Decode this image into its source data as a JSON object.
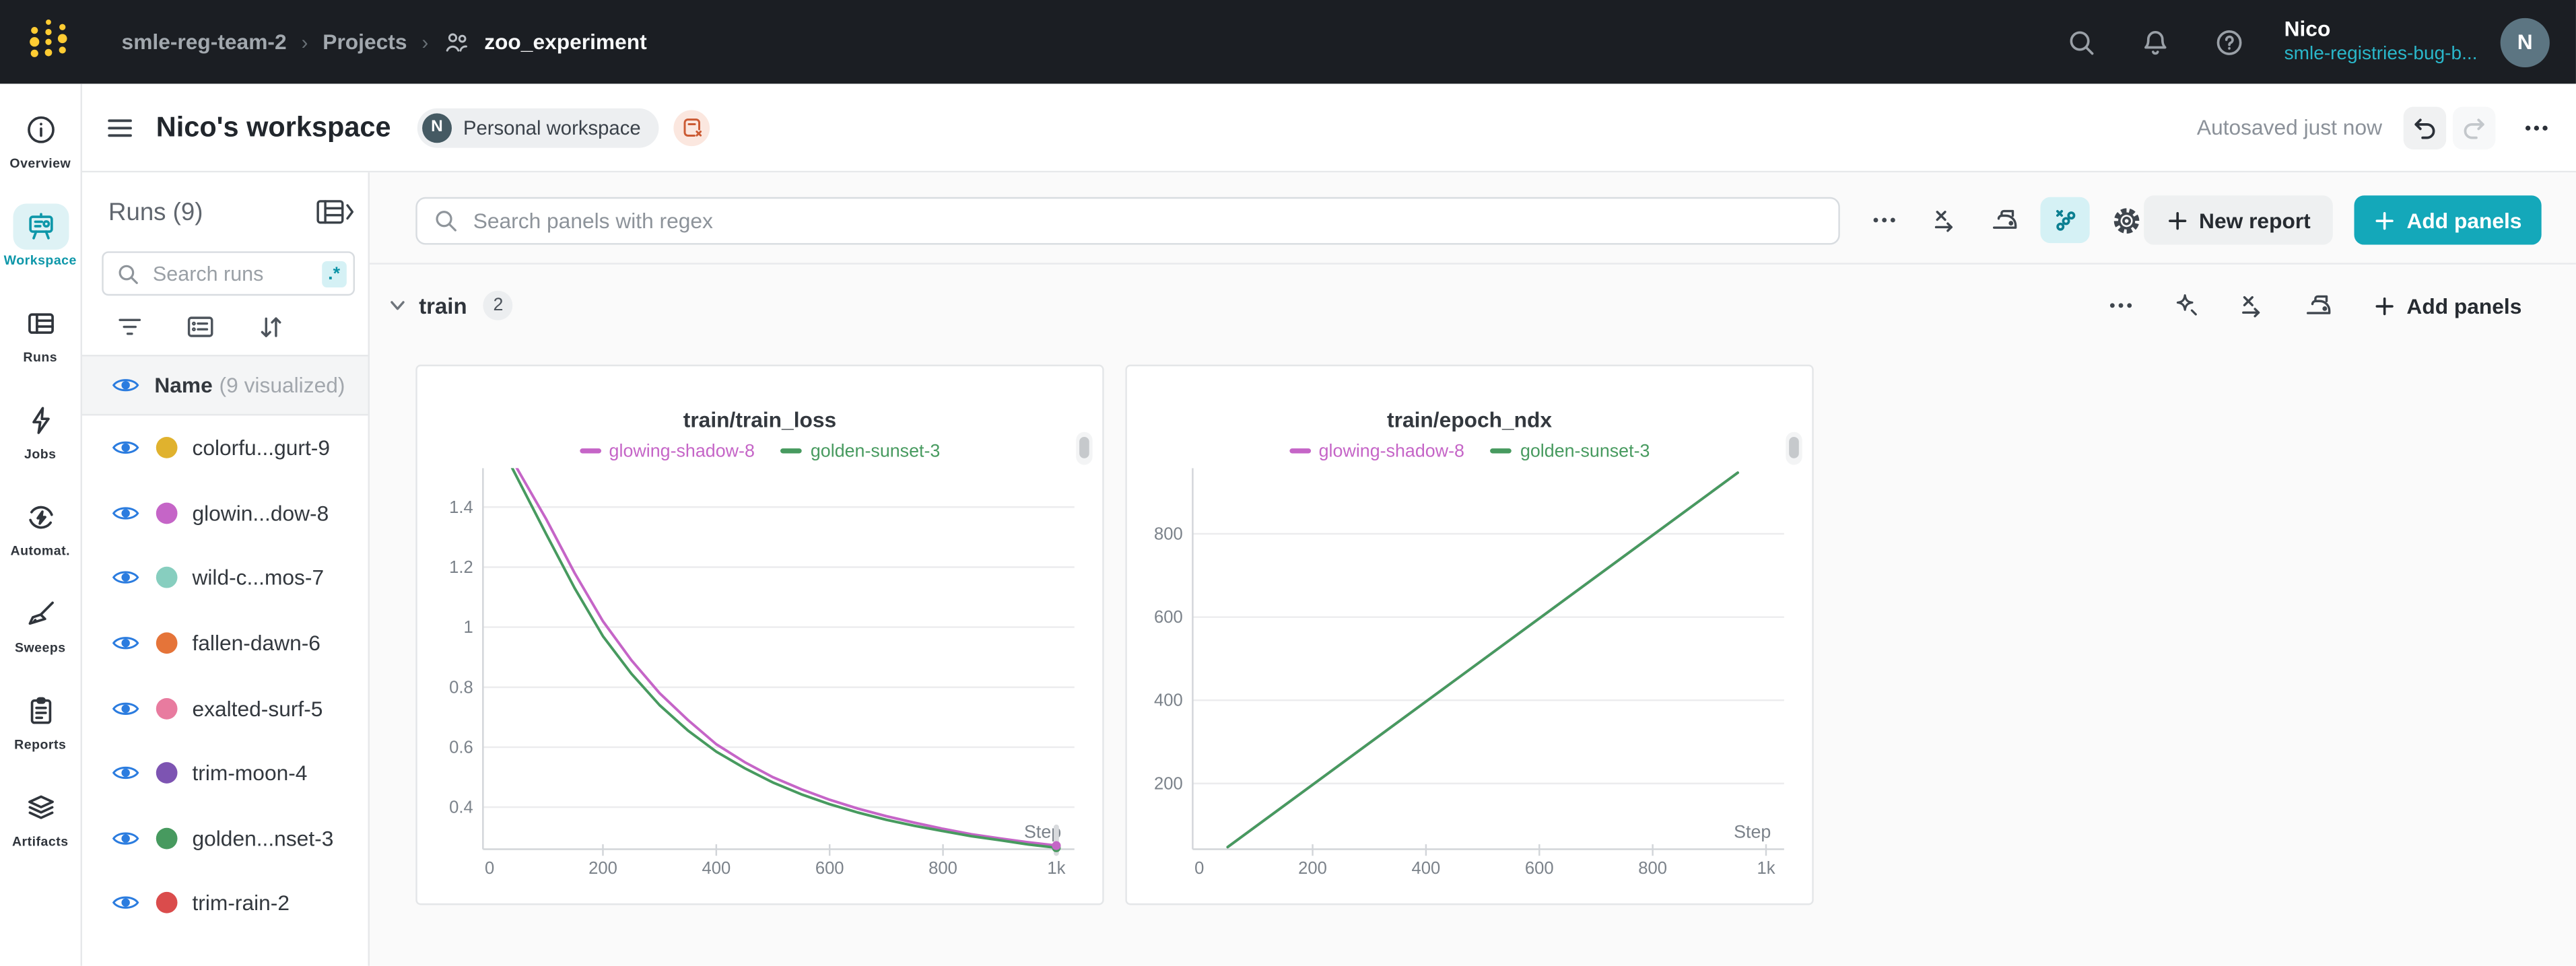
{
  "topbar": {
    "breadcrumb": {
      "team": "smle-reg-team-2",
      "section": "Projects",
      "project": "zoo_experiment",
      "separator": "›"
    },
    "icons": [
      "search-icon",
      "notifications-bell-icon",
      "help-icon"
    ],
    "user": {
      "name": "Nico",
      "org": "smle-registries-bug-b...",
      "avatar_initial": "N"
    }
  },
  "appbar": {
    "title": "Nico's workspace",
    "workspace_badge": {
      "initial": "N",
      "label": "Personal workspace"
    },
    "autosaved": "Autosaved just now"
  },
  "left_nav": {
    "items": [
      {
        "label": "Overview",
        "icon": "info-icon",
        "active": false
      },
      {
        "label": "Workspace",
        "icon": "workspace-easel-icon",
        "active": true
      },
      {
        "label": "Runs",
        "icon": "runs-table-icon",
        "active": false
      },
      {
        "label": "Jobs",
        "icon": "jobs-bolt-icon",
        "active": false
      },
      {
        "label": "Automat.",
        "icon": "automations-icon",
        "active": false
      },
      {
        "label": "Sweeps",
        "icon": "sweeps-broom-icon",
        "active": false
      },
      {
        "label": "Reports",
        "icon": "reports-clipboard-icon",
        "active": false
      },
      {
        "label": "Artifacts",
        "icon": "artifacts-layers-icon",
        "active": false
      }
    ]
  },
  "runs_panel": {
    "title": "Runs (9)",
    "search_placeholder": "Search runs",
    "regex_label": ".*",
    "tool_icons": [
      "filter-icon",
      "list-icon",
      "sort-icon"
    ],
    "header_name": "Name",
    "header_suffix": "(9 visualized)",
    "runs": [
      {
        "name": "colorfu...gurt-9",
        "color": "#E0B22E"
      },
      {
        "name": "glowin...dow-8",
        "color": "#C565C7"
      },
      {
        "name": "wild-c...mos-7",
        "color": "#87CEBF"
      },
      {
        "name": "fallen-dawn-6",
        "color": "#E57439"
      },
      {
        "name": "exalted-surf-5",
        "color": "#E87B9F"
      },
      {
        "name": "trim-moon-4",
        "color": "#7D54B2"
      },
      {
        "name": "golden...nset-3",
        "color": "#479A5F"
      },
      {
        "name": "trim-rain-2",
        "color": "#DA4C4C"
      }
    ]
  },
  "toolbar": {
    "search_placeholder": "Search panels with regex",
    "icon_buttons": [
      "ellipsis-icon",
      "x-axis-settings-icon",
      "smoothing-iron-icon",
      "outliers-scatter-icon",
      "settings-gear-icon"
    ],
    "new_report_label": "New report",
    "add_panels_label": "Add panels"
  },
  "section": {
    "name": "train",
    "count": "2",
    "icon_buttons": [
      "ellipsis-icon",
      "sparkle-icon",
      "x-axis-settings-icon",
      "smoothing-iron-icon"
    ],
    "add_panels_label": "Add panels"
  },
  "colors": {
    "accent_teal": "#14A8BA",
    "eye_blue": "#2B7CDF",
    "topbar_bg": "#1B1E23",
    "logo_yellow": "#FFCC33"
  },
  "chart_data": [
    {
      "type": "line",
      "title": "train/train_loss",
      "xlabel": "Step",
      "xlim": [
        0,
        1000
      ],
      "ylim": [
        0.26,
        1.53
      ],
      "xticks": [
        0,
        200,
        400,
        600,
        800,
        1000
      ],
      "xtick_labels": [
        "0",
        "200",
        "400",
        "600",
        "800",
        "1k"
      ],
      "yticks": [
        0.4,
        0.6,
        0.8,
        1,
        1.2,
        1.4
      ],
      "ytick_labels": [
        "0.4",
        "0.6",
        "0.8",
        "1",
        "1.2",
        "1.4"
      ],
      "grid": "horizontal",
      "legend_position": "top",
      "end_marker": true,
      "series": [
        {
          "name": "glowing-shadow-8",
          "color": "#C565C7",
          "x": [
            48,
            100,
            150,
            200,
            250,
            300,
            350,
            400,
            450,
            500,
            550,
            600,
            650,
            700,
            750,
            800,
            850,
            900,
            950,
            1000
          ],
          "y": [
            1.53,
            1.36,
            1.18,
            1.02,
            0.89,
            0.78,
            0.69,
            0.61,
            0.55,
            0.5,
            0.46,
            0.425,
            0.395,
            0.37,
            0.348,
            0.328,
            0.31,
            0.296,
            0.283,
            0.272
          ]
        },
        {
          "name": "golden-sunset-3",
          "color": "#479A5F",
          "x": [
            40,
            100,
            150,
            200,
            250,
            300,
            350,
            400,
            450,
            500,
            550,
            600,
            650,
            700,
            750,
            800,
            850,
            900,
            950,
            1000
          ],
          "y": [
            1.53,
            1.31,
            1.13,
            0.97,
            0.845,
            0.74,
            0.655,
            0.585,
            0.53,
            0.482,
            0.443,
            0.41,
            0.382,
            0.358,
            0.338,
            0.32,
            0.303,
            0.29,
            0.276,
            0.265
          ]
        }
      ]
    },
    {
      "type": "line",
      "title": "train/epoch_ndx",
      "xlabel": "Step",
      "xlim": [
        0,
        1000
      ],
      "ylim": [
        42,
        958
      ],
      "xticks": [
        0,
        200,
        400,
        600,
        800,
        1000
      ],
      "xtick_labels": [
        "0",
        "200",
        "400",
        "600",
        "800",
        "1k"
      ],
      "yticks": [
        200,
        400,
        600,
        800
      ],
      "ytick_labels": [
        "200",
        "400",
        "600",
        "800"
      ],
      "grid": "horizontal",
      "legend_position": "top",
      "end_marker": false,
      "series": [
        {
          "name": "glowing-shadow-8",
          "color": "#C565C7",
          "x": [
            50,
            950
          ],
          "y": [
            47,
            947
          ]
        },
        {
          "name": "golden-sunset-3",
          "color": "#479A5F",
          "x": [
            50,
            950
          ],
          "y": [
            47,
            947
          ]
        }
      ]
    }
  ]
}
